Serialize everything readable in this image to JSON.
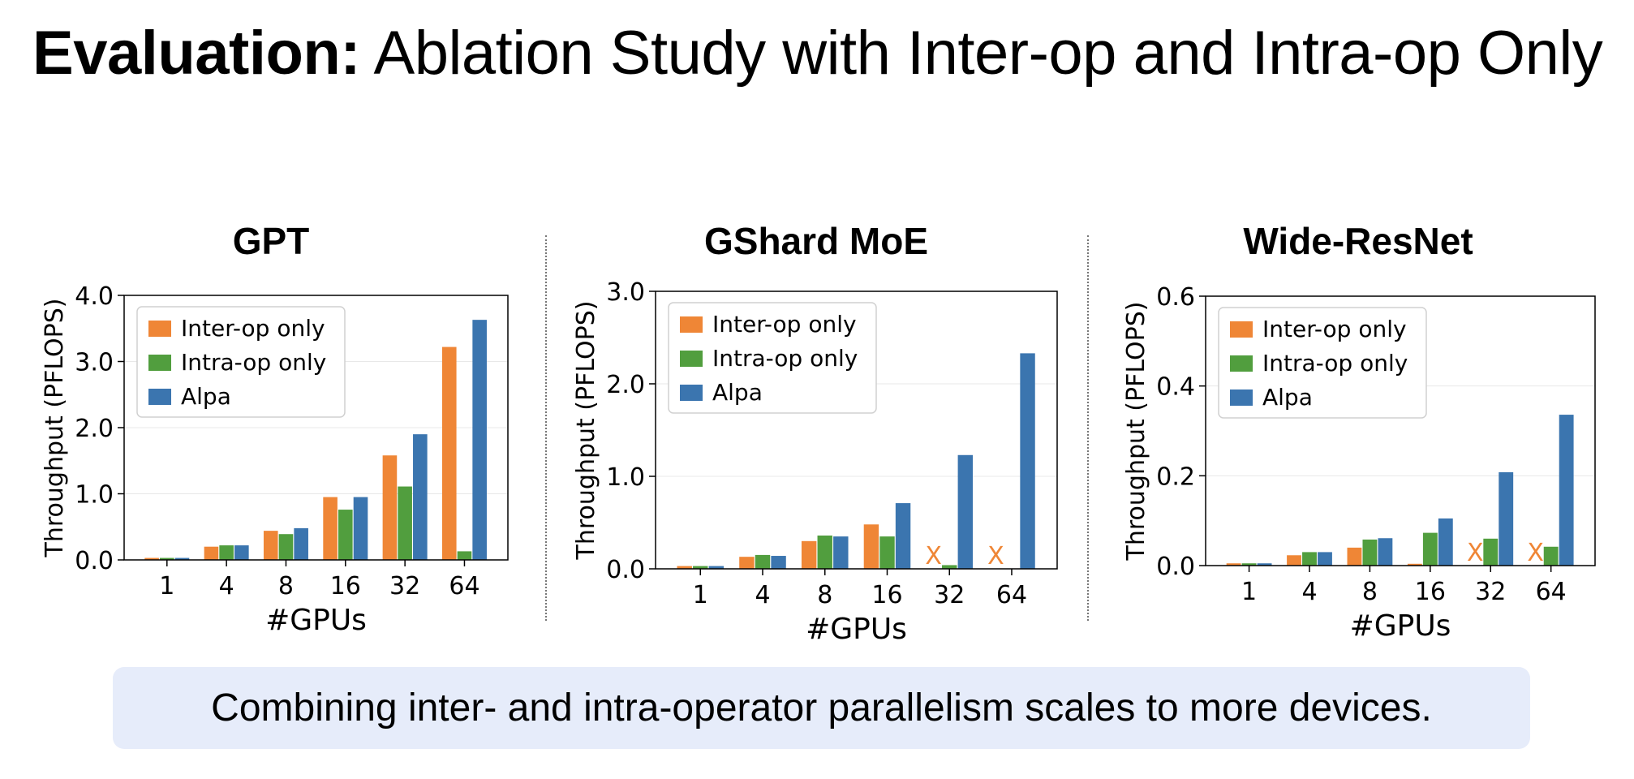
{
  "slide": {
    "title_bold": "Evaluation:",
    "title_rest": " Ablation Study with Inter-op and Intra-op Only",
    "callout": "Combining inter- and intra-operator parallelism scales to more devices."
  },
  "colors": {
    "inter_op": "#EF8636",
    "intra_op": "#519E3E",
    "alpa": "#3B75AF",
    "callout_bg": "#E6ECFA"
  },
  "chart_data": [
    {
      "type": "bar",
      "title": "GPT",
      "xlabel": "#GPUs",
      "ylabel": "Throughput (PFLOPS)",
      "categories": [
        "1",
        "4",
        "8",
        "16",
        "32",
        "64"
      ],
      "yticks": [
        "0.0",
        "1.0",
        "2.0",
        "3.0",
        "4.0"
      ],
      "ylim": [
        0,
        4.0
      ],
      "legend_position": "top-left",
      "series": [
        {
          "name": "Inter-op only",
          "values": [
            0.03,
            0.2,
            0.44,
            0.95,
            1.58,
            3.22
          ]
        },
        {
          "name": "Intra-op only",
          "values": [
            0.03,
            0.22,
            0.39,
            0.76,
            1.11,
            0.13
          ]
        },
        {
          "name": "Alpa",
          "values": [
            0.03,
            0.22,
            0.48,
            0.95,
            1.9,
            3.63
          ]
        }
      ],
      "failed_marks": []
    },
    {
      "type": "bar",
      "title": "GShard MoE",
      "xlabel": "#GPUs",
      "ylabel": "Throughput (PFLOPS)",
      "categories": [
        "1",
        "4",
        "8",
        "16",
        "32",
        "64"
      ],
      "yticks": [
        "0.0",
        "1.0",
        "2.0",
        "3.0"
      ],
      "ylim": [
        0,
        3.0
      ],
      "legend_position": "top-left",
      "series": [
        {
          "name": "Inter-op only",
          "values": [
            0.03,
            0.13,
            0.3,
            0.48,
            null,
            null
          ]
        },
        {
          "name": "Intra-op only",
          "values": [
            0.03,
            0.15,
            0.36,
            0.35,
            0.04,
            null
          ]
        },
        {
          "name": "Alpa",
          "values": [
            0.03,
            0.14,
            0.35,
            0.71,
            1.23,
            2.33
          ]
        }
      ],
      "failed_marks": [
        {
          "category": "32",
          "series": "Inter-op only",
          "label": "X"
        },
        {
          "category": "64",
          "series": "Inter-op only",
          "label": "X"
        }
      ]
    },
    {
      "type": "bar",
      "title": "Wide-ResNet",
      "xlabel": "#GPUs",
      "ylabel": "Throughput (PFLOPS)",
      "categories": [
        "1",
        "4",
        "8",
        "16",
        "32",
        "64"
      ],
      "yticks": [
        "0.0",
        "0.2",
        "0.4",
        "0.6"
      ],
      "ylim": [
        0,
        0.6
      ],
      "legend_position": "top-left",
      "series": [
        {
          "name": "Inter-op only",
          "values": [
            0.005,
            0.023,
            0.04,
            0.004,
            null,
            null
          ]
        },
        {
          "name": "Intra-op only",
          "values": [
            0.005,
            0.03,
            0.058,
            0.073,
            0.06,
            0.042
          ]
        },
        {
          "name": "Alpa",
          "values": [
            0.005,
            0.03,
            0.061,
            0.105,
            0.208,
            0.336
          ]
        }
      ],
      "failed_marks": [
        {
          "category": "32",
          "series": "Inter-op only",
          "label": "X"
        },
        {
          "category": "64",
          "series": "Inter-op only",
          "label": "X"
        }
      ]
    }
  ]
}
